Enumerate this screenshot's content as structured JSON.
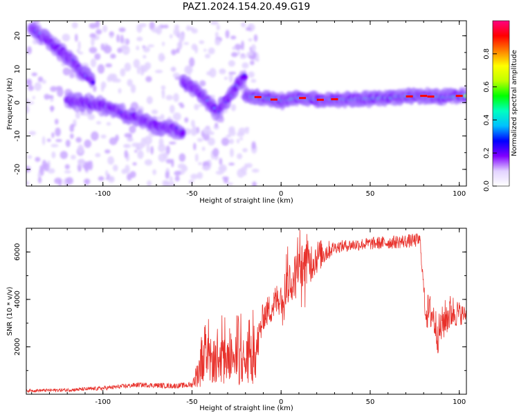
{
  "title": "PAZ1.2024.154.20.49.G19",
  "chart_data": [
    {
      "type": "heatmap",
      "xlabel": "Height of straight line (km)",
      "ylabel": "Frequency (Hz)",
      "xlim": [
        -143,
        104
      ],
      "ylim": [
        -25,
        24.5
      ],
      "xticks": [
        -100,
        -50,
        0,
        50,
        100
      ],
      "yticks": [
        -20,
        -10,
        0,
        10,
        20
      ],
      "colorbar": {
        "label": "Normalized spectral amplitude",
        "range": [
          0,
          1
        ],
        "ticks": [
          0.0,
          0.2,
          0.4,
          0.6,
          0.8
        ],
        "colormap": [
          "#ffffff",
          "#e2d2ff",
          "#8000ff",
          "#0000ff",
          "#00c0ff",
          "#00ffc0",
          "#00ff00",
          "#c0ff00",
          "#ffff00",
          "#ff8000",
          "#ff0000",
          "#ff0080"
        ]
      },
      "ridges": [
        {
          "name": "upper-left",
          "x": [
            -140,
            -132,
            -125,
            -118,
            -112,
            -105
          ],
          "y": [
            22,
            19,
            16,
            13,
            9,
            6
          ],
          "amplitude": 0.18
        },
        {
          "name": "descending",
          "x": [
            -120,
            -110,
            -100,
            -90,
            -80,
            -70,
            -60,
            -55
          ],
          "y": [
            0.5,
            0,
            -1,
            -3,
            -5,
            -7,
            -8,
            -9
          ],
          "amplitude": 0.3
        },
        {
          "name": "middle",
          "x": [
            -55,
            -48,
            -42,
            -36,
            -30,
            -25,
            -20
          ],
          "y": [
            6,
            4,
            1,
            -3,
            1,
            5,
            8
          ],
          "amplitude": 0.25
        },
        {
          "name": "carrier",
          "x": [
            -20,
            -10,
            0,
            10,
            20,
            30,
            40,
            50,
            60,
            70,
            80,
            90,
            100,
            104
          ],
          "y": [
            2,
            1.5,
            0.5,
            1.5,
            0.8,
            1,
            1,
            1.2,
            1.5,
            1.8,
            2,
            1.5,
            2,
            2
          ],
          "amplitude": 0.95
        }
      ]
    },
    {
      "type": "line",
      "xlabel": "Height of straight line (km)",
      "ylabel": "SNR (10 * v/v)",
      "xlim": [
        -143,
        104
      ],
      "ylim": [
        0,
        7000
      ],
      "xticks": [
        -100,
        -50,
        0,
        50,
        100
      ],
      "yticks": [
        2000,
        4000,
        6000
      ],
      "line_color": "#e8302a",
      "envelope": {
        "x": [
          -143,
          -120,
          -100,
          -80,
          -60,
          -50,
          -45,
          -40,
          -30,
          -20,
          -15,
          -10,
          -5,
          0,
          5,
          10,
          15,
          20,
          25,
          30,
          40,
          50,
          60,
          70,
          78,
          81,
          85,
          88,
          92,
          96,
          100,
          104
        ],
        "y": [
          150,
          180,
          250,
          400,
          350,
          400,
          1200,
          1400,
          1400,
          1400,
          1400,
          3300,
          3700,
          4200,
          4700,
          5300,
          5500,
          5800,
          6000,
          6200,
          6300,
          6350,
          6400,
          6450,
          6500,
          3500,
          3400,
          2500,
          3200,
          3500,
          3400,
          3350
        ]
      },
      "noise_amplitude": {
        "x": [
          -143,
          -50,
          -45,
          -15,
          -10,
          0,
          15,
          30,
          80,
          82,
          95,
          104
        ],
        "y": [
          60,
          120,
          900,
          1100,
          600,
          800,
          1000,
          250,
          300,
          800,
          800,
          300
        ]
      }
    }
  ]
}
